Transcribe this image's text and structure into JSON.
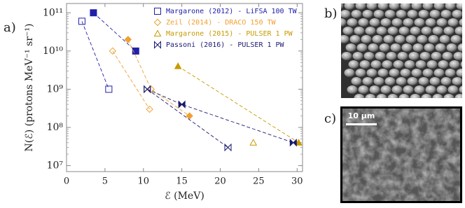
{
  "chart_data": {
    "type": "scatter",
    "xlabel": "ℰ (MeV)",
    "ylabel": "N(ℰ) (protons MeV⁻¹ sr⁻¹)",
    "xlim": [
      0,
      30.7
    ],
    "xticks": [
      0,
      5,
      10,
      15,
      20,
      25,
      30
    ],
    "ylim": [
      7000000,
      175000000000
    ],
    "log_y": true,
    "yticks": [
      {
        "value": 10000000,
        "label": "10⁷"
      },
      {
        "value": 100000000,
        "label": "10⁸"
      },
      {
        "value": 1000000000,
        "label": "10⁹"
      },
      {
        "value": 10000000000,
        "label": "10¹⁰"
      },
      {
        "value": 100000000000,
        "label": "10¹¹"
      }
    ],
    "legend_position": "upper right",
    "series": [
      {
        "name": "Margarone (2012) - LiFSA 100 TW",
        "color": "#2020a8",
        "marker": "square",
        "x": [
          2,
          5.5,
          null,
          3.5,
          9
        ],
        "values": [
          60000000000,
          1000000000,
          null,
          100000000000,
          10000000000
        ],
        "filled": [
          false,
          false,
          null,
          true,
          true
        ]
      },
      {
        "name": "Zeil (2014) - DRACO 150 TW",
        "color": "#f0a030",
        "marker": "diamond",
        "x": [
          6,
          10.8,
          null,
          8,
          11,
          16
        ],
        "values": [
          10000000000,
          300000000,
          null,
          20000000000,
          1000000000,
          200000000
        ],
        "filled": [
          false,
          false,
          null,
          true,
          false,
          true
        ]
      },
      {
        "name": "Margarone (2015) - PULSER 1 PW",
        "color": "#c89a00",
        "marker": "triangle",
        "x": [
          14.5,
          30.2,
          null,
          24.3
        ],
        "values": [
          4000000000,
          40000000,
          null,
          40000000
        ],
        "filled": [
          true,
          true,
          null,
          false
        ]
      },
      {
        "name": "Passoni (2016) - PULSER 1 PW",
        "color": "#1a1a70",
        "marker": "bowtie",
        "x": [
          10.5,
          15,
          29.5,
          null,
          10.5,
          21
        ],
        "values": [
          1000000000,
          400000000,
          40000000,
          null,
          1000000000,
          30000000
        ],
        "filled": [
          false,
          true,
          true,
          null,
          false,
          false
        ]
      }
    ]
  },
  "panel_labels": [
    "a)",
    "b)",
    "c)"
  ],
  "scale_bar": "10 μm"
}
